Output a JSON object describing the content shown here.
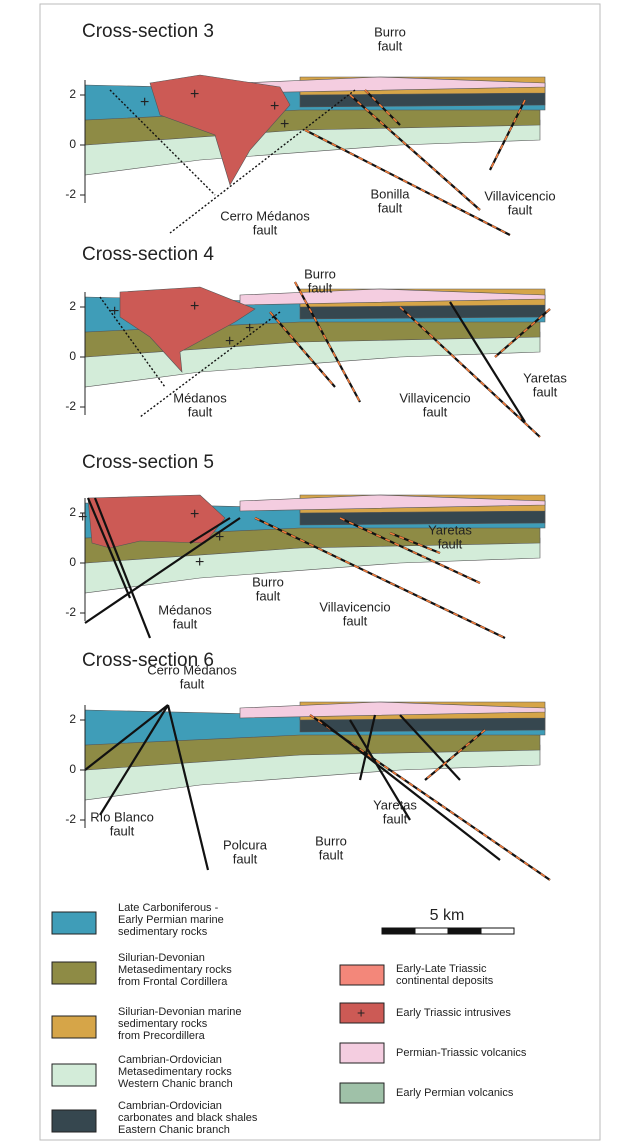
{
  "sections": [
    {
      "title": "Cross-section 3",
      "ticks": [
        "2",
        "0",
        "-2"
      ],
      "labels": [
        [
          "Burro",
          "fault"
        ],
        [
          "Cerro Médanos",
          "fault"
        ],
        [
          "Bonilla",
          "fault"
        ],
        [
          "Villavicencio",
          "fault"
        ]
      ]
    },
    {
      "title": "Cross-section 4",
      "ticks": [
        "2",
        "0",
        "-2"
      ],
      "labels": [
        [
          "Burro",
          "fault"
        ],
        [
          "Médanos",
          "fault"
        ],
        [
          "Villavicencio",
          "fault"
        ],
        [
          "Yaretas",
          "fault"
        ]
      ]
    },
    {
      "title": "Cross-section 5",
      "ticks": [
        "2",
        "0",
        "-2"
      ],
      "labels": [
        [
          "Médanos",
          "fault"
        ],
        [
          "Burro",
          "fault"
        ],
        [
          "Villavicencio",
          "fault"
        ],
        [
          "Yaretas",
          "fault"
        ]
      ]
    },
    {
      "title": "Cross-section 6",
      "ticks": [
        "2",
        "0",
        "-2"
      ],
      "labels": [
        [
          "Cerro Médanos",
          "fault"
        ],
        [
          "Río Blanco",
          "fault"
        ],
        [
          "Polcura",
          "fault"
        ],
        [
          "Burro",
          "fault"
        ],
        [
          "Yaretas",
          "fault"
        ]
      ]
    }
  ],
  "legend_left": [
    [
      "Late Carboniferous -",
      "Early Permian marine",
      "sedimentary rocks"
    ],
    [
      "Silurian-Devonian",
      "Metasedimentary rocks",
      "from Frontal Cordillera"
    ],
    [
      "Silurian-Devonian marine",
      "sedimentary rocks",
      "from Precordillera"
    ],
    [
      "Cambrian-Ordovician",
      "Metasedimentary rocks",
      "Western Chanic branch"
    ],
    [
      "Cambrian-Ordovician",
      "carbonates and black shales",
      "Eastern Chanic branch"
    ]
  ],
  "legend_right": [
    [
      "Early-Late Triassic",
      "continental deposits"
    ],
    [
      "Early Triassic intrusives"
    ],
    [
      "Permian-Triassic volcanics"
    ],
    [
      "Early Permian volcanics"
    ]
  ],
  "scale": "5 km"
}
